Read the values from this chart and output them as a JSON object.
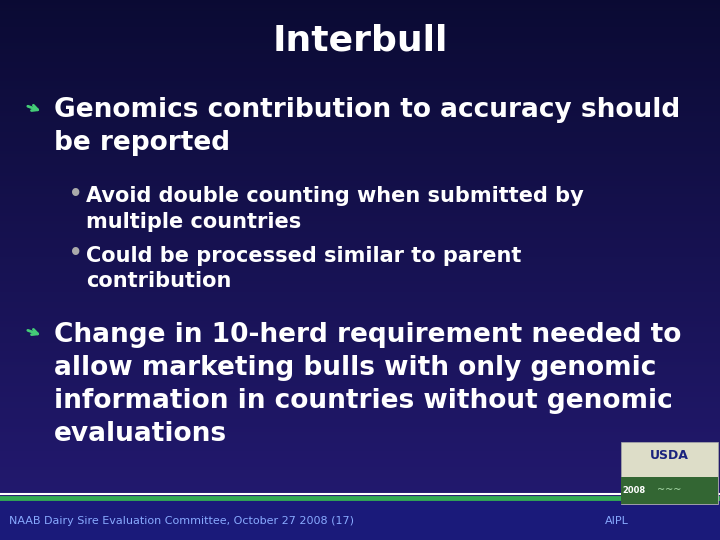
{
  "title": "Interbull",
  "bg_color_top": "#0a0a3a",
  "bg_color_bottom": "#2a2a8a",
  "title_color": "#ffffff",
  "title_fontsize": 26,
  "text_color": "#ffffff",
  "bullet1_text": "Genomics contribution to accuracy should\nbe reported",
  "bullet1_fontsize": 19,
  "sub_bullet1_text": "Avoid double counting when submitted by\nmultiple countries",
  "sub_bullet1_fontsize": 15,
  "sub_bullet2_text": "Could be processed similar to parent\ncontribution",
  "sub_bullet2_fontsize": 15,
  "bullet2_text": "Change in 10-herd requirement needed to\nallow marketing bulls with only genomic\ninformation in countries without genomic\nevaluations",
  "bullet2_fontsize": 19,
  "footer_text": "NAAB Dairy Sire Evaluation Committee, October 27 2008 (17)",
  "footer_right_text": "AIPL",
  "footer_color": "#88aaff",
  "footer_fontsize": 8,
  "green_line_color": "#33aa55",
  "white_line_color": "#ffffff",
  "arrow_color": "#44cc77",
  "sub_bullet_dot_color": "#aaaaaa"
}
